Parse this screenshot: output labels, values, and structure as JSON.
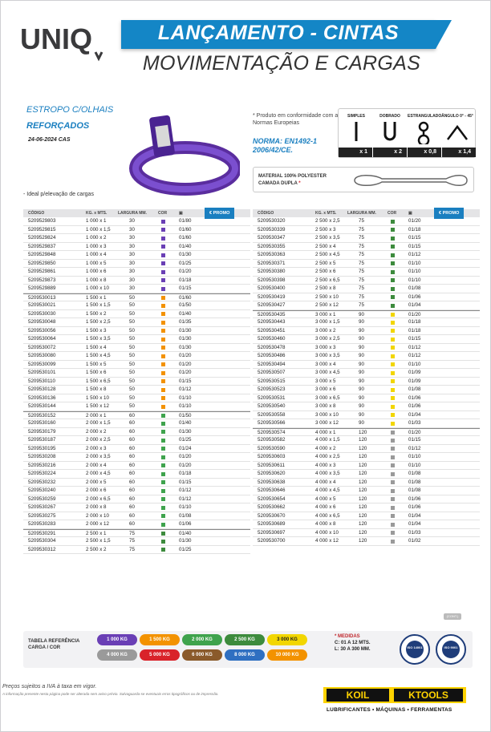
{
  "header": {
    "logo_text": "UNIQ",
    "title": "LANÇAMENTO - CINTAS",
    "subtitle": "MOVIMENTAÇÃO E CARGAS"
  },
  "product": {
    "name_line1": "ESTROPO C/OLHAIS",
    "name_line2": "REFORÇADOS",
    "date": "24-06-2024 CAS",
    "note": "- Ideal p/elevação de cargas",
    "conformity": "* Produto em conformidade com as Normas Europeias",
    "norma_line1": "NORMA: EN1492-1",
    "norma_line2": "2006/42/CE.",
    "material_line1": "MATERIAL 100% POLYESTER",
    "material_line2": "CAMADA DUPLA",
    "material_mark": "*"
  },
  "uses": [
    {
      "label": "SIMPLES",
      "factor": "x 1"
    },
    {
      "label": "DOBRADO",
      "factor": "x 2"
    },
    {
      "label": "ESTRANGULADO",
      "factor": "x 0,8"
    },
    {
      "label": "ÂNGULO 0° - 45°",
      "factor": "x 1,4"
    }
  ],
  "table_headers": {
    "code": "CÓDIGO",
    "kg": "KG. x MTS.",
    "width": "LARGURA MM.",
    "color": "COR",
    "promo": "€ PROMO"
  },
  "colors": {
    "violet": "#6a3fb5",
    "green": "#3fa34d",
    "yellow": "#f2d600",
    "grey": "#9a9a9a",
    "red": "#d9232a",
    "brown": "#8a5a2b",
    "blue": "#2f6fc1",
    "orange": "#f39200",
    "darkgreen": "#3d8b3d"
  },
  "left_rows": [
    {
      "code": "5209529803",
      "kg": "1 000 x 1",
      "w": "30",
      "c": "#6a3fb5",
      "p": "01/80",
      "g": true
    },
    {
      "code": "5209529815",
      "kg": "1 000 x 1,5",
      "w": "30",
      "c": "#6a3fb5",
      "p": "01/60"
    },
    {
      "code": "5209529824",
      "kg": "1 000 x 2",
      "w": "30",
      "c": "#6a3fb5",
      "p": "01/60"
    },
    {
      "code": "5209529837",
      "kg": "1 000 x 3",
      "w": "30",
      "c": "#6a3fb5",
      "p": "01/40"
    },
    {
      "code": "5209529848",
      "kg": "1 000 x 4",
      "w": "30",
      "c": "#6a3fb5",
      "p": "01/30"
    },
    {
      "code": "5209529850",
      "kg": "1 000 x 5",
      "w": "30",
      "c": "#6a3fb5",
      "p": "01/25"
    },
    {
      "code": "5209529861",
      "kg": "1 000 x 6",
      "w": "30",
      "c": "#6a3fb5",
      "p": "01/20"
    },
    {
      "code": "5209529873",
      "kg": "1 000 x 8",
      "w": "30",
      "c": "#6a3fb5",
      "p": "01/18"
    },
    {
      "code": "5209529889",
      "kg": "1 000 x 10",
      "w": "30",
      "c": "#6a3fb5",
      "p": "01/15"
    },
    {
      "code": "5209530013",
      "kg": "1 500 x 1",
      "w": "50",
      "c": "#f39200",
      "p": "01/60",
      "g": true
    },
    {
      "code": "5209530021",
      "kg": "1 500 x 1,5",
      "w": "50",
      "c": "#f39200",
      "p": "01/50"
    },
    {
      "code": "5209530030",
      "kg": "1 500 x 2",
      "w": "50",
      "c": "#f39200",
      "p": "01/40"
    },
    {
      "code": "5209530048",
      "kg": "1 500 x 2,5",
      "w": "50",
      "c": "#f39200",
      "p": "01/35"
    },
    {
      "code": "5209530056",
      "kg": "1 500 x 3",
      "w": "50",
      "c": "#f39200",
      "p": "01/30"
    },
    {
      "code": "5209530064",
      "kg": "1 500 x 3,5",
      "w": "50",
      "c": "#f39200",
      "p": "01/30"
    },
    {
      "code": "5209530072",
      "kg": "1 500 x 4",
      "w": "50",
      "c": "#f39200",
      "p": "01/30"
    },
    {
      "code": "5209530080",
      "kg": "1 500 x 4,5",
      "w": "50",
      "c": "#f39200",
      "p": "01/20"
    },
    {
      "code": "5209530099",
      "kg": "1 500 x 5",
      "w": "50",
      "c": "#f39200",
      "p": "01/20"
    },
    {
      "code": "5209530101",
      "kg": "1 500 x 6",
      "w": "50",
      "c": "#f39200",
      "p": "01/20"
    },
    {
      "code": "5209530110",
      "kg": "1 500 x 6,5",
      "w": "50",
      "c": "#f39200",
      "p": "01/15"
    },
    {
      "code": "5209530128",
      "kg": "1 500 x 8",
      "w": "50",
      "c": "#f39200",
      "p": "01/12"
    },
    {
      "code": "5209530136",
      "kg": "1 500 x 10",
      "w": "50",
      "c": "#f39200",
      "p": "01/10"
    },
    {
      "code": "5209530144",
      "kg": "1 500 x 12",
      "w": "50",
      "c": "#f39200",
      "p": "01/10"
    },
    {
      "code": "5209530152",
      "kg": "2 000 x 1",
      "w": "60",
      "c": "#3fa34d",
      "p": "01/50",
      "g": true
    },
    {
      "code": "5209530160",
      "kg": "2 000 x 1,5",
      "w": "60",
      "c": "#3fa34d",
      "p": "01/40"
    },
    {
      "code": "5209530179",
      "kg": "2 000 x 2",
      "w": "60",
      "c": "#3fa34d",
      "p": "01/30"
    },
    {
      "code": "5209530187",
      "kg": "2 000 x 2,5",
      "w": "60",
      "c": "#3fa34d",
      "p": "01/25"
    },
    {
      "code": "5209530195",
      "kg": "2 000 x 3",
      "w": "60",
      "c": "#3fa34d",
      "p": "01/24"
    },
    {
      "code": "5209530208",
      "kg": "2 000 x 3,5",
      "w": "60",
      "c": "#3fa34d",
      "p": "01/20"
    },
    {
      "code": "5209530216",
      "kg": "2 000 x 4",
      "w": "60",
      "c": "#3fa34d",
      "p": "01/20"
    },
    {
      "code": "5209530224",
      "kg": "2 000 x 4,5",
      "w": "60",
      "c": "#3fa34d",
      "p": "01/18"
    },
    {
      "code": "5209530232",
      "kg": "2 000 x 5",
      "w": "60",
      "c": "#3fa34d",
      "p": "01/15"
    },
    {
      "code": "5209530240",
      "kg": "2 000 x 6",
      "w": "60",
      "c": "#3fa34d",
      "p": "01/12"
    },
    {
      "code": "5209530259",
      "kg": "2 000 x 6,5",
      "w": "60",
      "c": "#3fa34d",
      "p": "01/12"
    },
    {
      "code": "5209530267",
      "kg": "2 000 x 8",
      "w": "60",
      "c": "#3fa34d",
      "p": "01/10"
    },
    {
      "code": "5209530275",
      "kg": "2 000 x 10",
      "w": "60",
      "c": "#3fa34d",
      "p": "01/08"
    },
    {
      "code": "5209530283",
      "kg": "2 000 x 12",
      "w": "60",
      "c": "#3fa34d",
      "p": "01/06"
    },
    {
      "code": "5209530291",
      "kg": "2 500 x 1",
      "w": "75",
      "c": "#3d8b3d",
      "p": "01/40",
      "g": true
    },
    {
      "code": "5209530304",
      "kg": "2 500 x 1,5",
      "w": "75",
      "c": "#3d8b3d",
      "p": "01/30"
    },
    {
      "code": "5209530312",
      "kg": "2 500 x 2",
      "w": "75",
      "c": "#3d8b3d",
      "p": "01/25"
    }
  ],
  "right_rows": [
    {
      "code": "5209530320",
      "kg": "2 500 x 2,5",
      "w": "75",
      "c": "#3d8b3d",
      "p": "01/20"
    },
    {
      "code": "5209530339",
      "kg": "2 500 x 3",
      "w": "75",
      "c": "#3d8b3d",
      "p": "01/18"
    },
    {
      "code": "5209530347",
      "kg": "2 500 x 3,5",
      "w": "75",
      "c": "#3d8b3d",
      "p": "01/15"
    },
    {
      "code": "5209530355",
      "kg": "2 500 x 4",
      "w": "75",
      "c": "#3d8b3d",
      "p": "01/15"
    },
    {
      "code": "5209530363",
      "kg": "2 500 x 4,5",
      "w": "75",
      "c": "#3d8b3d",
      "p": "01/12"
    },
    {
      "code": "5209530371",
      "kg": "2 500 x 5",
      "w": "75",
      "c": "#3d8b3d",
      "p": "01/10"
    },
    {
      "code": "5209530380",
      "kg": "2 500 x 6",
      "w": "75",
      "c": "#3d8b3d",
      "p": "01/10"
    },
    {
      "code": "5209530398",
      "kg": "2 500 x 6,5",
      "w": "75",
      "c": "#3d8b3d",
      "p": "01/10"
    },
    {
      "code": "5209530400",
      "kg": "2 500 x 8",
      "w": "75",
      "c": "#3d8b3d",
      "p": "01/08"
    },
    {
      "code": "5209530419",
      "kg": "2 500 x 10",
      "w": "75",
      "c": "#3d8b3d",
      "p": "01/06"
    },
    {
      "code": "5209530427",
      "kg": "2 500 x 12",
      "w": "75",
      "c": "#3d8b3d",
      "p": "01/04"
    },
    {
      "code": "5209530435",
      "kg": "3 000 x 1",
      "w": "90",
      "c": "#f2d600",
      "p": "01/20",
      "g": true
    },
    {
      "code": "5209530443",
      "kg": "3 000 x 1,5",
      "w": "90",
      "c": "#f2d600",
      "p": "01/18"
    },
    {
      "code": "5209530451",
      "kg": "3 000 x 2",
      "w": "90",
      "c": "#f2d600",
      "p": "01/18"
    },
    {
      "code": "5209530460",
      "kg": "3 000 x 2,5",
      "w": "90",
      "c": "#f2d600",
      "p": "01/15"
    },
    {
      "code": "5209530478",
      "kg": "3 000 x 3",
      "w": "90",
      "c": "#f2d600",
      "p": "01/12"
    },
    {
      "code": "5209530486",
      "kg": "3 000 x 3,5",
      "w": "90",
      "c": "#f2d600",
      "p": "01/12"
    },
    {
      "code": "5209530494",
      "kg": "3 000 x 4",
      "w": "90",
      "c": "#f2d600",
      "p": "01/10"
    },
    {
      "code": "5209530507",
      "kg": "3 000 x 4,5",
      "w": "90",
      "c": "#f2d600",
      "p": "01/09"
    },
    {
      "code": "5209530515",
      "kg": "3 000 x 5",
      "w": "90",
      "c": "#f2d600",
      "p": "01/09"
    },
    {
      "code": "5209530523",
      "kg": "3 000 x 6",
      "w": "90",
      "c": "#f2d600",
      "p": "01/08"
    },
    {
      "code": "5209530531",
      "kg": "3 000 x 6,5",
      "w": "90",
      "c": "#f2d600",
      "p": "01/06"
    },
    {
      "code": "5209530540",
      "kg": "3 000 x 8",
      "w": "90",
      "c": "#f2d600",
      "p": "01/06"
    },
    {
      "code": "5209530558",
      "kg": "3 000 x 10",
      "w": "90",
      "c": "#f2d600",
      "p": "01/04"
    },
    {
      "code": "5209530566",
      "kg": "3 000 x 12",
      "w": "90",
      "c": "#f2d600",
      "p": "01/03"
    },
    {
      "code": "5209530574",
      "kg": "4 000 x 1",
      "w": "120",
      "c": "#9a9a9a",
      "p": "01/20",
      "g": true
    },
    {
      "code": "5209530582",
      "kg": "4 000 x 1,5",
      "w": "120",
      "c": "#9a9a9a",
      "p": "01/15"
    },
    {
      "code": "5209530590",
      "kg": "4 000 x 2",
      "w": "120",
      "c": "#9a9a9a",
      "p": "01/12"
    },
    {
      "code": "5209530603",
      "kg": "4 000 x 2,5",
      "w": "120",
      "c": "#9a9a9a",
      "p": "01/10"
    },
    {
      "code": "5209530611",
      "kg": "4 000 x 3",
      "w": "120",
      "c": "#9a9a9a",
      "p": "01/10"
    },
    {
      "code": "5209530620",
      "kg": "4 000 x 3,5",
      "w": "120",
      "c": "#9a9a9a",
      "p": "01/08"
    },
    {
      "code": "5209530638",
      "kg": "4 000 x 4",
      "w": "120",
      "c": "#9a9a9a",
      "p": "01/08"
    },
    {
      "code": "5209530646",
      "kg": "4 000 x 4,5",
      "w": "120",
      "c": "#9a9a9a",
      "p": "01/08"
    },
    {
      "code": "5209530654",
      "kg": "4 000 x 5",
      "w": "120",
      "c": "#9a9a9a",
      "p": "01/06"
    },
    {
      "code": "5209530662",
      "kg": "4 000 x 6",
      "w": "120",
      "c": "#9a9a9a",
      "p": "01/06"
    },
    {
      "code": "5209530670",
      "kg": "4 000 x 6,5",
      "w": "120",
      "c": "#9a9a9a",
      "p": "01/04"
    },
    {
      "code": "5209530689",
      "kg": "4 000 x 8",
      "w": "120",
      "c": "#9a9a9a",
      "p": "01/04"
    },
    {
      "code": "5209530697",
      "kg": "4 000 x 10",
      "w": "120",
      "c": "#9a9a9a",
      "p": "01/03"
    },
    {
      "code": "5209530700",
      "kg": "4 000 x 12",
      "w": "120",
      "c": "#9a9a9a",
      "p": "01/02"
    }
  ],
  "cont_label": "(CONT.)",
  "legend": {
    "title_line1": "TABELA REFERÊNCIA",
    "title_line2": "CARGA / COR",
    "pills": [
      {
        "text": "1 000 KG",
        "c": "#6a3fb5"
      },
      {
        "text": "1 500 KG",
        "c": "#f39200"
      },
      {
        "text": "2 000 KG",
        "c": "#3fa34d"
      },
      {
        "text": "2 500 KG",
        "c": "#3d8b3d"
      },
      {
        "text": "3 000 KG",
        "c": "#f2d600"
      },
      {
        "text": "4 000 KG",
        "c": "#9a9a9a"
      },
      {
        "text": "5 000 KG",
        "c": "#d9232a"
      },
      {
        "text": "6 000 KG",
        "c": "#8a5a2b"
      },
      {
        "text": "8 000 KG",
        "c": "#2f6fc1"
      },
      {
        "text": "10 000 KG",
        "c": "#f39200"
      }
    ],
    "medidas_title": "* MEDIDAS",
    "medidas_line1": "C: 01 A 12 MTS.",
    "medidas_line2": "L: 30 A 300 MM.",
    "seal1": "ISO 14001",
    "seal2": "ISO 9001"
  },
  "footer": {
    "prices": "Preços sujeitos a IVA à taxa em vigor.",
    "disclaimer": "A informação presente nesta página pode ser alterada sem aviso prévio. Salvaguarda-se eventuais erros tipográficos ou de impressão.",
    "brand1": "KOIL",
    "brand2": "KTOOLS",
    "tagline": "LUBRIFICANTES • MÁQUINAS • FERRAMENTAS"
  }
}
